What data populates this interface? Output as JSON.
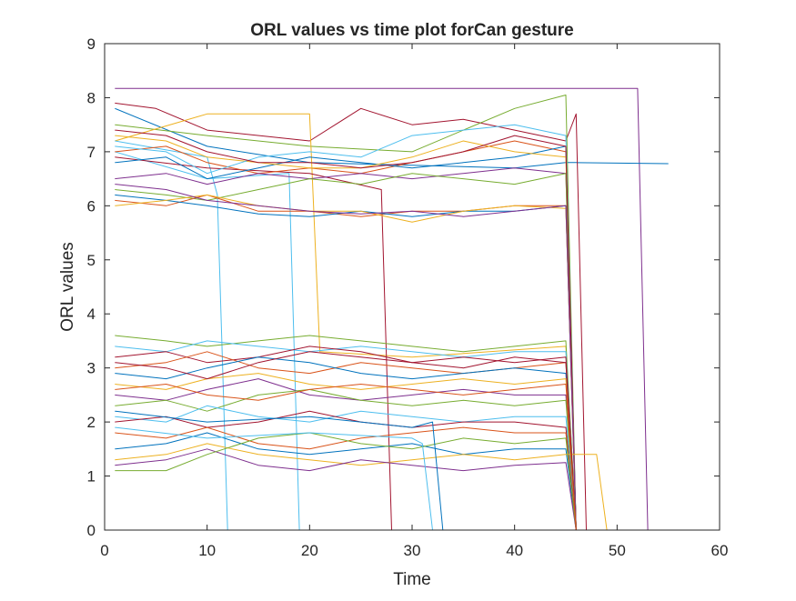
{
  "chart_data": {
    "type": "line",
    "title": "ORL values vs time plot forCan gesture",
    "xlabel": "Time",
    "ylabel": "ORL values",
    "xlim": [
      0,
      60
    ],
    "ylim": [
      0,
      9
    ],
    "xticks": [
      0,
      10,
      20,
      30,
      40,
      50,
      60
    ],
    "yticks": [
      0,
      1,
      2,
      3,
      4,
      5,
      6,
      7,
      8,
      9
    ],
    "grid": false,
    "legend": "none",
    "color_order": [
      "#0072BD",
      "#D95319",
      "#EDB120",
      "#7E2F8E",
      "#77AC30",
      "#4DBEEE",
      "#A2142F"
    ],
    "series": [
      {
        "color": "#7E2F8E",
        "x": [
          1,
          52,
          53,
          55
        ],
        "y": [
          8.17,
          8.17,
          0,
          0
        ]
      },
      {
        "color": "#0072BD",
        "x": [
          1,
          10,
          20,
          30,
          40,
          45,
          46,
          55
        ],
        "y": [
          7.8,
          7.1,
          6.8,
          6.75,
          6.7,
          6.8,
          6.8,
          6.78
        ]
      },
      {
        "color": "#A2142F",
        "x": [
          1,
          5,
          10,
          20,
          25,
          30,
          35,
          40,
          45,
          46,
          47
        ],
        "y": [
          7.9,
          7.8,
          7.4,
          7.2,
          7.8,
          7.5,
          7.6,
          7.4,
          7.2,
          7.7,
          0
        ]
      },
      {
        "color": "#77AC30",
        "x": [
          1,
          10,
          20,
          30,
          40,
          45,
          46
        ],
        "y": [
          7.5,
          7.3,
          7.1,
          7.0,
          7.8,
          8.05,
          0
        ]
      },
      {
        "color": "#EDB120",
        "x": [
          1,
          10,
          20,
          21,
          30,
          45,
          46
        ],
        "y": [
          7.2,
          7.7,
          7.7,
          3.3,
          3.2,
          3.4,
          0
        ]
      },
      {
        "color": "#4DBEEE",
        "x": [
          1,
          10,
          11,
          12
        ],
        "y": [
          7.2,
          6.9,
          6.2,
          0
        ]
      },
      {
        "color": "#4DBEEE",
        "x": [
          1,
          10,
          18,
          19
        ],
        "y": [
          7.0,
          6.5,
          6.6,
          0
        ]
      },
      {
        "color": "#A2142F",
        "x": [
          1,
          10,
          20,
          27,
          28
        ],
        "y": [
          6.9,
          6.7,
          6.6,
          6.3,
          0
        ]
      },
      {
        "color": "#D95319",
        "x": [
          1,
          6,
          10,
          15,
          20,
          25,
          30,
          35,
          40,
          45,
          46
        ],
        "y": [
          7.0,
          7.1,
          6.8,
          6.6,
          6.7,
          6.6,
          6.8,
          7.0,
          7.2,
          7.0,
          0
        ]
      },
      {
        "color": "#0072BD",
        "x": [
          1,
          6,
          10,
          15,
          20,
          25,
          30,
          35,
          40,
          45,
          46
        ],
        "y": [
          6.8,
          6.9,
          6.5,
          6.7,
          6.9,
          6.8,
          6.7,
          6.8,
          6.9,
          7.1,
          0
        ]
      },
      {
        "color": "#EDB120",
        "x": [
          1,
          6,
          10,
          15,
          20,
          25,
          30,
          35,
          40,
          45,
          46
        ],
        "y": [
          7.3,
          7.2,
          6.9,
          6.8,
          6.7,
          6.7,
          6.9,
          7.2,
          7.0,
          6.9,
          0
        ]
      },
      {
        "color": "#7E2F8E",
        "x": [
          1,
          6,
          10,
          15,
          20,
          25,
          30,
          35,
          40,
          45,
          46
        ],
        "y": [
          6.5,
          6.6,
          6.4,
          6.6,
          6.5,
          6.6,
          6.5,
          6.6,
          6.7,
          6.6,
          0
        ]
      },
      {
        "color": "#77AC30",
        "x": [
          1,
          6,
          10,
          15,
          20,
          25,
          30,
          35,
          40,
          45,
          46
        ],
        "y": [
          6.3,
          6.2,
          6.1,
          6.3,
          6.5,
          6.4,
          6.6,
          6.5,
          6.4,
          6.6,
          0
        ]
      },
      {
        "color": "#4DBEEE",
        "x": [
          1,
          6,
          10,
          15,
          20,
          25,
          30,
          35,
          40,
          45,
          46
        ],
        "y": [
          7.1,
          7.0,
          6.6,
          6.9,
          7.0,
          6.9,
          7.3,
          7.4,
          7.5,
          7.3,
          0
        ]
      },
      {
        "color": "#A2142F",
        "x": [
          1,
          6,
          10,
          15,
          20,
          25,
          30,
          35,
          40,
          45,
          46
        ],
        "y": [
          7.4,
          7.3,
          7.0,
          6.8,
          6.8,
          6.7,
          6.8,
          7.0,
          7.3,
          7.1,
          0
        ]
      },
      {
        "color": "#D95319",
        "x": [
          1,
          6,
          10,
          15,
          20,
          25,
          30,
          35,
          40,
          45,
          46
        ],
        "y": [
          6.1,
          6.0,
          6.2,
          5.9,
          5.9,
          5.8,
          5.9,
          5.9,
          6.0,
          6.0,
          0
        ]
      },
      {
        "color": "#0072BD",
        "x": [
          1,
          6,
          10,
          15,
          20,
          25,
          30,
          35,
          40,
          45,
          46
        ],
        "y": [
          6.2,
          6.1,
          6.0,
          5.85,
          5.8,
          5.9,
          5.8,
          5.9,
          5.9,
          6.0,
          0
        ]
      },
      {
        "color": "#EDB120",
        "x": [
          1,
          6,
          10,
          15,
          20,
          25,
          30,
          35,
          40,
          45,
          46
        ],
        "y": [
          6.0,
          6.1,
          6.2,
          6.0,
          5.9,
          5.9,
          5.7,
          5.9,
          6.0,
          5.95,
          0
        ]
      },
      {
        "color": "#7E2F8E",
        "x": [
          1,
          6,
          10,
          15,
          20,
          25,
          30,
          35,
          40,
          45,
          46
        ],
        "y": [
          6.4,
          6.3,
          6.1,
          6.0,
          5.9,
          5.85,
          5.9,
          5.8,
          5.9,
          6.0,
          0
        ]
      },
      {
        "color": "#77AC30",
        "x": [
          1,
          6,
          10,
          15,
          20,
          25,
          30,
          35,
          40,
          45,
          46
        ],
        "y": [
          3.6,
          3.5,
          3.4,
          3.5,
          3.6,
          3.5,
          3.4,
          3.3,
          3.4,
          3.5,
          0
        ]
      },
      {
        "color": "#4DBEEE",
        "x": [
          1,
          6,
          10,
          15,
          20,
          25,
          30,
          35,
          40,
          45,
          46
        ],
        "y": [
          3.4,
          3.3,
          3.5,
          3.4,
          3.3,
          3.4,
          3.3,
          3.2,
          3.3,
          3.3,
          0
        ]
      },
      {
        "color": "#A2142F",
        "x": [
          1,
          6,
          10,
          15,
          20,
          25,
          30,
          35,
          40,
          45,
          46
        ],
        "y": [
          3.2,
          3.3,
          3.1,
          3.2,
          3.4,
          3.3,
          3.1,
          3.2,
          3.1,
          3.2,
          0
        ]
      },
      {
        "color": "#D95319",
        "x": [
          1,
          6,
          10,
          15,
          20,
          25,
          30,
          35,
          40,
          45,
          46
        ],
        "y": [
          3.0,
          3.1,
          3.3,
          3.0,
          2.9,
          3.1,
          3.0,
          2.9,
          3.0,
          3.1,
          0
        ]
      },
      {
        "color": "#0072BD",
        "x": [
          1,
          6,
          10,
          15,
          20,
          25,
          30,
          35,
          40,
          45,
          46
        ],
        "y": [
          2.9,
          2.8,
          3.0,
          3.2,
          3.1,
          2.9,
          2.8,
          2.9,
          3.0,
          2.9,
          0
        ]
      },
      {
        "color": "#EDB120",
        "x": [
          1,
          6,
          10,
          15,
          20,
          25,
          30,
          35,
          40,
          45,
          46
        ],
        "y": [
          2.7,
          2.6,
          2.8,
          2.9,
          2.7,
          2.6,
          2.7,
          2.8,
          2.7,
          2.8,
          0
        ]
      },
      {
        "color": "#7E2F8E",
        "x": [
          1,
          6,
          10,
          15,
          20,
          25,
          30,
          35,
          40,
          45,
          46
        ],
        "y": [
          2.5,
          2.4,
          2.6,
          2.8,
          2.5,
          2.4,
          2.5,
          2.6,
          2.5,
          2.5,
          0
        ]
      },
      {
        "color": "#77AC30",
        "x": [
          1,
          6,
          10,
          15,
          20,
          25,
          30,
          35,
          40,
          45,
          46
        ],
        "y": [
          2.3,
          2.4,
          2.2,
          2.5,
          2.6,
          2.4,
          2.3,
          2.4,
          2.3,
          2.4,
          0
        ]
      },
      {
        "color": "#4DBEEE",
        "x": [
          1,
          6,
          10,
          15,
          20,
          25,
          30,
          35,
          40,
          45,
          46
        ],
        "y": [
          2.1,
          2.0,
          2.3,
          2.1,
          2.0,
          2.2,
          2.1,
          2.0,
          2.1,
          2.1,
          0
        ]
      },
      {
        "color": "#A2142F",
        "x": [
          1,
          6,
          10,
          15,
          20,
          25,
          30,
          35,
          40,
          45,
          46
        ],
        "y": [
          2.0,
          2.1,
          1.9,
          2.0,
          2.2,
          2.0,
          1.9,
          2.0,
          2.0,
          1.9,
          0
        ]
      },
      {
        "color": "#D95319",
        "x": [
          1,
          6,
          10,
          15,
          20,
          25,
          30,
          35,
          40,
          45,
          46
        ],
        "y": [
          1.8,
          1.7,
          1.9,
          1.6,
          1.5,
          1.7,
          1.8,
          1.9,
          1.8,
          1.8,
          0
        ]
      },
      {
        "color": "#0072BD",
        "x": [
          1,
          6,
          10,
          15,
          20,
          25,
          30,
          35,
          40,
          45,
          46
        ],
        "y": [
          1.5,
          1.6,
          1.8,
          1.5,
          1.4,
          1.5,
          1.6,
          1.4,
          1.5,
          1.5,
          0
        ]
      },
      {
        "color": "#EDB120",
        "x": [
          1,
          6,
          10,
          15,
          20,
          25,
          30,
          35,
          40,
          45,
          46,
          48,
          49,
          50
        ],
        "y": [
          1.3,
          1.4,
          1.6,
          1.4,
          1.3,
          1.2,
          1.3,
          1.4,
          1.3,
          1.4,
          1.4,
          1.4,
          0,
          0
        ]
      },
      {
        "color": "#7E2F8E",
        "x": [
          1,
          6,
          10,
          15,
          20,
          25,
          30,
          35,
          40,
          45,
          46
        ],
        "y": [
          1.2,
          1.3,
          1.5,
          1.2,
          1.1,
          1.3,
          1.2,
          1.1,
          1.2,
          1.25,
          0
        ]
      },
      {
        "color": "#77AC30",
        "x": [
          1,
          6,
          10,
          15,
          20,
          25,
          30,
          35,
          40,
          45,
          46
        ],
        "y": [
          1.1,
          1.1,
          1.4,
          1.7,
          1.8,
          1.6,
          1.5,
          1.7,
          1.6,
          1.7,
          0
        ]
      },
      {
        "color": "#4DBEEE",
        "x": [
          1,
          10,
          20,
          30,
          31,
          32
        ],
        "y": [
          1.9,
          1.7,
          1.8,
          1.7,
          1.6,
          0
        ]
      },
      {
        "color": "#0072BD",
        "x": [
          1,
          10,
          20,
          30,
          32,
          33
        ],
        "y": [
          2.2,
          2.0,
          2.1,
          1.9,
          2.0,
          0
        ]
      },
      {
        "color": "#A2142F",
        "x": [
          1,
          6,
          10,
          15,
          20,
          25,
          30,
          35,
          40,
          45,
          46
        ],
        "y": [
          3.1,
          3.0,
          2.8,
          3.1,
          3.3,
          3.2,
          3.1,
          3.0,
          3.2,
          3.1,
          0
        ]
      },
      {
        "color": "#D95319",
        "x": [
          1,
          6,
          10,
          15,
          20,
          25,
          30,
          35,
          40,
          45,
          46
        ],
        "y": [
          2.6,
          2.7,
          2.5,
          2.4,
          2.6,
          2.7,
          2.6,
          2.5,
          2.6,
          2.7,
          0
        ]
      },
      {
        "color": "#D95319",
        "x": [
          1,
          44,
          45,
          55
        ],
        "y": [
          0,
          0,
          0,
          0
        ]
      }
    ]
  }
}
